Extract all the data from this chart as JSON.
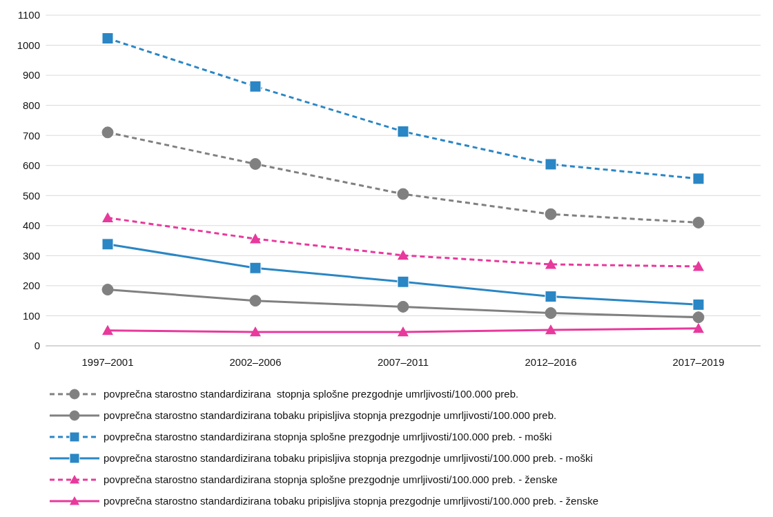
{
  "chart_data": {
    "type": "line",
    "categories": [
      "1997–2001",
      "2002–2006",
      "2007–2011",
      "2012–2016",
      "2017–2019"
    ],
    "ylim": [
      0,
      1100
    ],
    "yticks": [
      0,
      100,
      200,
      300,
      400,
      500,
      600,
      700,
      800,
      900,
      1000,
      1100
    ],
    "grid": "y",
    "legend": "bottom",
    "series": [
      {
        "name": "povprečna starostno standardizirana  stopnja splošne prezgodnje umrljivosti/100.000 preb.",
        "color": "#808080",
        "marker": "circle",
        "line_style": "dashed",
        "values": [
          710,
          605,
          505,
          438,
          410
        ]
      },
      {
        "name": "povprečna starostno standardizirana tobaku pripisljiva stopnja prezgodnje umrljivosti/100.000 preb.",
        "color": "#808080",
        "marker": "circle",
        "line_style": "solid",
        "values": [
          187,
          150,
          130,
          109,
          95
        ]
      },
      {
        "name": "povprečna starostno standardizirana stopnja splošne prezgodnje umrljivosti/100.000 preb. - moški",
        "color": "#2a86c4",
        "marker": "square",
        "line_style": "dashed",
        "values": [
          1023,
          863,
          713,
          604,
          556
        ]
      },
      {
        "name": "povprečna starostno standardizirana tobaku pripisljiva stopnja prezgodnje umrljivosti/100.000 preb. - moški",
        "color": "#2a86c4",
        "marker": "square",
        "line_style": "solid",
        "values": [
          338,
          259,
          213,
          164,
          137
        ]
      },
      {
        "name": "povprečna starostno standardizirana stopnja splošne prezgodnje umrljivosti/100.000 preb. - ženske",
        "color": "#e8399c",
        "marker": "triangle",
        "line_style": "dashed",
        "values": [
          426,
          356,
          301,
          271,
          264
        ]
      },
      {
        "name": "povprečna starostno standardizirana tobaku pripisljiva stopnja prezgodnje umrljivosti/100.000 preb. - ženske",
        "color": "#e8399c",
        "marker": "triangle",
        "line_style": "solid",
        "values": [
          51,
          46,
          46,
          53,
          58
        ]
      }
    ]
  }
}
